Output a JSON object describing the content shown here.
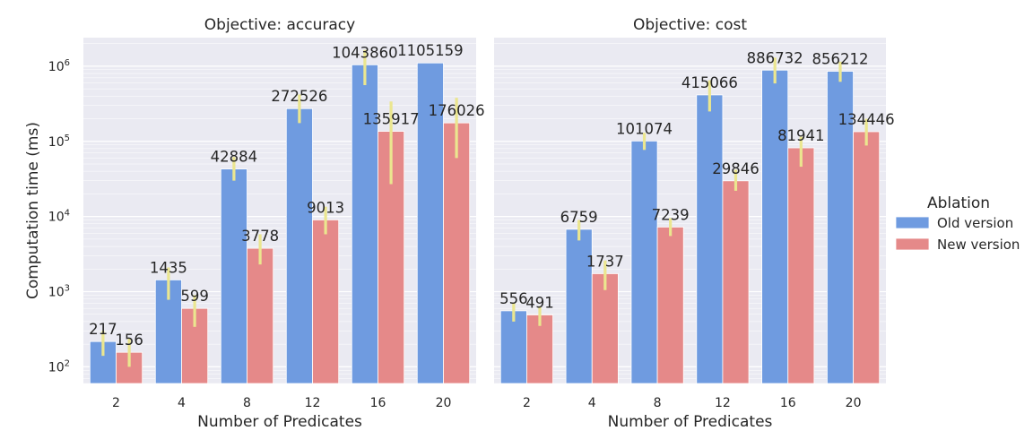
{
  "chart_data": {
    "type": "bar",
    "log_scale_y": true,
    "grid": true,
    "legend_placement": "right",
    "ylabel": "Computation time (ms)",
    "y_ticks": [
      {
        "value": 100,
        "base": "10",
        "exp": "2"
      },
      {
        "value": 1000,
        "base": "10",
        "exp": "3"
      },
      {
        "value": 10000,
        "base": "10",
        "exp": "4"
      },
      {
        "value": 100000,
        "base": "10",
        "exp": "5"
      },
      {
        "value": 1000000,
        "base": "10",
        "exp": "6"
      }
    ],
    "ylim": [
      60,
      2400000
    ],
    "legend": {
      "title": "Ablation",
      "entries": [
        {
          "name": "Old version",
          "color": "#6f9be0"
        },
        {
          "name": "New version",
          "color": "#e58989"
        }
      ]
    },
    "errorbar_color": "#ebe68f",
    "panels": [
      {
        "title": "Objective: accuracy",
        "xlabel": "Number of Predicates",
        "categories": [
          "2",
          "4",
          "8",
          "12",
          "16",
          "20"
        ],
        "series": [
          {
            "name": "Old version",
            "values": [
              217,
              1435,
              42884,
              272526,
              1043860,
              1105159
            ],
            "err_low": [
              140,
              780,
              30000,
              175000,
              560000,
              1105159
            ],
            "err_high": [
              300,
              2100,
              62000,
              420000,
              1650000,
              1105159
            ]
          },
          {
            "name": "New version",
            "values": [
              156,
              599,
              3778,
              9013,
              135917,
              176026
            ],
            "err_low": [
              100,
              340,
              2300,
              5800,
              27000,
              60000
            ],
            "err_high": [
              240,
              900,
              5800,
              13500,
              340000,
              380000
            ]
          }
        ]
      },
      {
        "title": "Objective: cost",
        "xlabel": "Number of Predicates",
        "categories": [
          "2",
          "4",
          "8",
          "12",
          "16",
          "20"
        ],
        "series": [
          {
            "name": "Old version",
            "values": [
              556,
              6759,
              101074,
              415066,
              886732,
              856212
            ],
            "err_low": [
              400,
              4800,
              77000,
              250000,
              590000,
              620000
            ],
            "err_high": [
              720,
              9000,
              130000,
              650000,
              1300000,
              1150000
            ]
          },
          {
            "name": "New version",
            "values": [
              491,
              1737,
              7239,
              29846,
              81941,
              134446
            ],
            "err_low": [
              350,
              1050,
              5500,
              22000,
              46000,
              88000
            ],
            "err_high": [
              640,
              2600,
              9500,
              42000,
              115000,
              200000
            ]
          }
        ]
      }
    ]
  }
}
